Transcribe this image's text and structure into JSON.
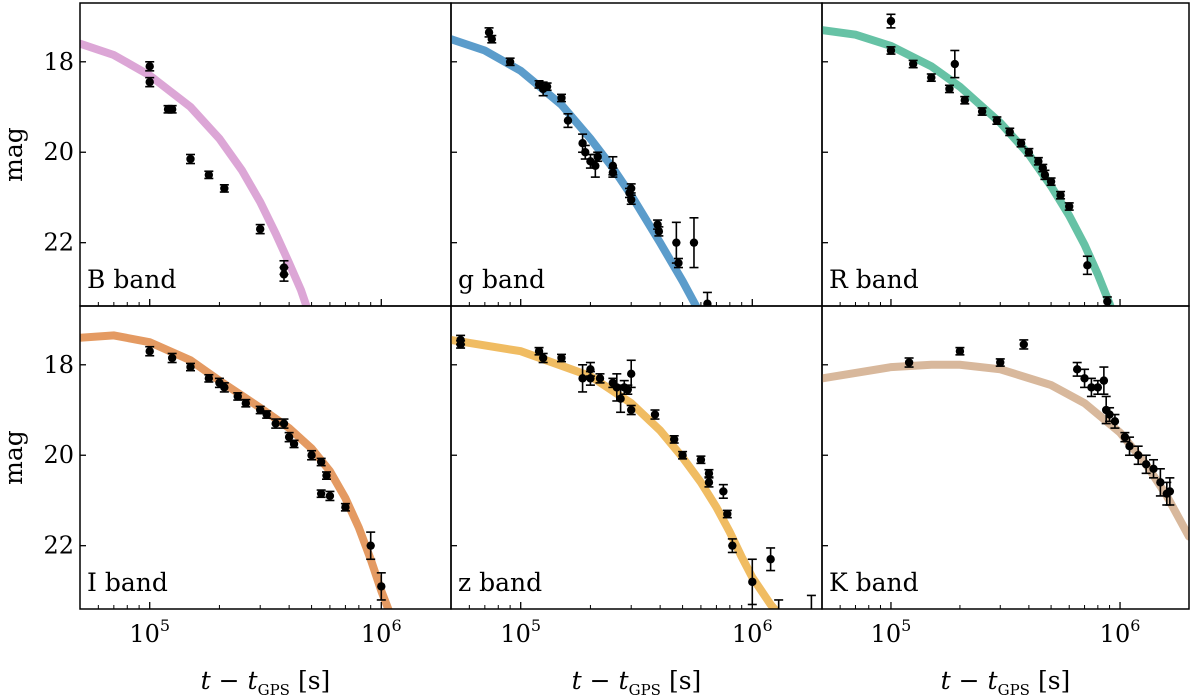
{
  "chart_data": {
    "type": "scatter",
    "x_scale": "log",
    "x_range": [
      50000,
      2000000
    ],
    "y_range_inverted": [
      23.4,
      16.7
    ],
    "grid": false,
    "legend": "none",
    "y_label": "mag",
    "x_label": {
      "main": "t − t",
      "subscript": "GPS",
      "unit": "[s]"
    },
    "x_tick_labels": [
      {
        "value": 100000,
        "base": "10",
        "exp": "5"
      },
      {
        "value": 1000000,
        "base": "10",
        "exp": "6"
      }
    ],
    "y_tick_labels": [
      {
        "value": 18,
        "text": "18"
      },
      {
        "value": 20,
        "text": "20"
      },
      {
        "value": 22,
        "text": "22"
      }
    ],
    "panels": [
      {
        "name": "B band",
        "color": "#dca6d6",
        "model": [
          [
            50000,
            17.6
          ],
          [
            70000,
            17.85
          ],
          [
            100000,
            18.3
          ],
          [
            150000,
            19.0
          ],
          [
            200000,
            19.7
          ],
          [
            250000,
            20.4
          ],
          [
            300000,
            21.1
          ],
          [
            350000,
            21.8
          ],
          [
            400000,
            22.45
          ],
          [
            450000,
            23.05
          ],
          [
            490000,
            23.6
          ]
        ],
        "points": [
          [
            100000,
            18.1,
            0.1
          ],
          [
            100000,
            18.45,
            0.1
          ],
          [
            120000,
            19.05,
            0.08
          ],
          [
            125000,
            19.05,
            0.08
          ],
          [
            150000,
            20.15,
            0.1
          ],
          [
            180000,
            20.5,
            0.08
          ],
          [
            210000,
            20.8,
            0.08
          ],
          [
            300000,
            21.7,
            0.1
          ],
          [
            380000,
            22.55,
            0.15
          ],
          [
            380000,
            22.7,
            0.15
          ]
        ]
      },
      {
        "name": "g band",
        "color": "#5b9ccb",
        "model": [
          [
            50000,
            17.5
          ],
          [
            70000,
            17.75
          ],
          [
            100000,
            18.2
          ],
          [
            150000,
            18.95
          ],
          [
            200000,
            19.7
          ],
          [
            250000,
            20.35
          ],
          [
            300000,
            20.95
          ],
          [
            400000,
            22.0
          ],
          [
            500000,
            22.85
          ],
          [
            600000,
            23.6
          ]
        ],
        "points": [
          [
            73000,
            17.35,
            0.1
          ],
          [
            75000,
            17.5,
            0.08
          ],
          [
            90000,
            18.0,
            0.08
          ],
          [
            120000,
            18.5,
            0.08
          ],
          [
            125000,
            18.6,
            0.15
          ],
          [
            130000,
            18.55,
            0.08
          ],
          [
            150000,
            18.8,
            0.08
          ],
          [
            160000,
            19.3,
            0.15
          ],
          [
            185000,
            19.8,
            0.2
          ],
          [
            190000,
            20.0,
            0.15
          ],
          [
            200000,
            20.2,
            0.15
          ],
          [
            210000,
            20.3,
            0.25
          ],
          [
            215000,
            20.1,
            0.1
          ],
          [
            250000,
            20.3,
            0.2
          ],
          [
            250000,
            20.45,
            0.1
          ],
          [
            295000,
            20.9,
            0.1
          ],
          [
            300000,
            21.05,
            0.1
          ],
          [
            300000,
            20.8,
            0.1
          ],
          [
            390000,
            21.6,
            0.1
          ],
          [
            395000,
            21.75,
            0.1
          ],
          [
            470000,
            22.0,
            0.45
          ],
          [
            480000,
            22.45,
            0.1
          ],
          [
            560000,
            22.0,
            0.55
          ],
          [
            640000,
            23.35,
            0.25
          ]
        ]
      },
      {
        "name": "R band",
        "color": "#66c2a5",
        "model": [
          [
            50000,
            17.3
          ],
          [
            70000,
            17.4
          ],
          [
            100000,
            17.65
          ],
          [
            150000,
            18.1
          ],
          [
            200000,
            18.55
          ],
          [
            300000,
            19.35
          ],
          [
            400000,
            20.05
          ],
          [
            500000,
            20.75
          ],
          [
            600000,
            21.4
          ],
          [
            700000,
            22.05
          ],
          [
            800000,
            22.7
          ],
          [
            900000,
            23.35
          ],
          [
            950000,
            23.7
          ]
        ],
        "points": [
          [
            100000,
            17.1,
            0.15
          ],
          [
            100000,
            17.75,
            0.08
          ],
          [
            125000,
            18.05,
            0.08
          ],
          [
            150000,
            18.35,
            0.08
          ],
          [
            180000,
            18.6,
            0.08
          ],
          [
            190000,
            18.05,
            0.3
          ],
          [
            210000,
            18.85,
            0.08
          ],
          [
            250000,
            19.1,
            0.08
          ],
          [
            290000,
            19.3,
            0.08
          ],
          [
            330000,
            19.55,
            0.08
          ],
          [
            370000,
            19.8,
            0.08
          ],
          [
            400000,
            20.0,
            0.08
          ],
          [
            440000,
            20.2,
            0.08
          ],
          [
            460000,
            20.35,
            0.08
          ],
          [
            470000,
            20.5,
            0.1
          ],
          [
            500000,
            20.65,
            0.08
          ],
          [
            550000,
            20.95,
            0.08
          ],
          [
            600000,
            21.2,
            0.08
          ],
          [
            720000,
            22.5,
            0.2
          ],
          [
            880000,
            23.3,
            0.1
          ]
        ]
      },
      {
        "name": "I band",
        "color": "#e49a62",
        "model": [
          [
            50000,
            17.4
          ],
          [
            70000,
            17.35
          ],
          [
            100000,
            17.5
          ],
          [
            150000,
            17.9
          ],
          [
            200000,
            18.35
          ],
          [
            300000,
            18.95
          ],
          [
            400000,
            19.4
          ],
          [
            500000,
            19.85
          ],
          [
            600000,
            20.35
          ],
          [
            700000,
            20.95
          ],
          [
            800000,
            21.6
          ],
          [
            900000,
            22.3
          ],
          [
            1000000,
            23.0
          ],
          [
            1100000,
            23.55
          ]
        ],
        "points": [
          [
            100000,
            17.7,
            0.1
          ],
          [
            125000,
            17.85,
            0.1
          ],
          [
            150000,
            18.05,
            0.08
          ],
          [
            180000,
            18.3,
            0.08
          ],
          [
            200000,
            18.4,
            0.1
          ],
          [
            210000,
            18.5,
            0.1
          ],
          [
            240000,
            18.7,
            0.08
          ],
          [
            260000,
            18.85,
            0.08
          ],
          [
            300000,
            19.0,
            0.08
          ],
          [
            320000,
            19.1,
            0.08
          ],
          [
            350000,
            19.3,
            0.1
          ],
          [
            380000,
            19.3,
            0.1
          ],
          [
            400000,
            19.6,
            0.1
          ],
          [
            420000,
            19.75,
            0.08
          ],
          [
            500000,
            20.0,
            0.1
          ],
          [
            550000,
            20.15,
            0.08
          ],
          [
            580000,
            20.45,
            0.08
          ],
          [
            550000,
            20.85,
            0.08
          ],
          [
            600000,
            20.9,
            0.1
          ],
          [
            700000,
            21.15,
            0.08
          ],
          [
            900000,
            22.0,
            0.3
          ],
          [
            1000000,
            22.9,
            0.3
          ]
        ]
      },
      {
        "name": "z band",
        "color": "#f0bc62",
        "model": [
          [
            50000,
            17.45
          ],
          [
            100000,
            17.7
          ],
          [
            200000,
            18.25
          ],
          [
            300000,
            18.85
          ],
          [
            400000,
            19.45
          ],
          [
            500000,
            20.05
          ],
          [
            600000,
            20.6
          ],
          [
            700000,
            21.15
          ],
          [
            800000,
            21.7
          ],
          [
            900000,
            22.25
          ],
          [
            1000000,
            22.7
          ],
          [
            1200000,
            23.3
          ],
          [
            1400000,
            23.7
          ]
        ],
        "points": [
          [
            55000,
            17.45,
            0.1
          ],
          [
            55000,
            17.55,
            0.08
          ],
          [
            120000,
            17.7,
            0.08
          ],
          [
            125000,
            17.85,
            0.1
          ],
          [
            150000,
            17.85,
            0.08
          ],
          [
            185000,
            18.3,
            0.3
          ],
          [
            200000,
            18.3,
            0.15
          ],
          [
            200000,
            18.1,
            0.15
          ],
          [
            220000,
            18.3,
            0.1
          ],
          [
            250000,
            18.4,
            0.1
          ],
          [
            260000,
            18.5,
            0.3
          ],
          [
            270000,
            18.75,
            0.3
          ],
          [
            280000,
            18.5,
            0.15
          ],
          [
            290000,
            18.55,
            0.1
          ],
          [
            300000,
            18.2,
            0.3
          ],
          [
            300000,
            19.0,
            0.1
          ],
          [
            380000,
            19.1,
            0.1
          ],
          [
            460000,
            19.65,
            0.08
          ],
          [
            500000,
            20.0,
            0.08
          ],
          [
            600000,
            20.1,
            0.08
          ],
          [
            650000,
            20.4,
            0.08
          ],
          [
            650000,
            20.6,
            0.1
          ],
          [
            750000,
            20.8,
            0.15
          ],
          [
            780000,
            21.3,
            0.08
          ],
          [
            820000,
            22.0,
            0.15
          ],
          [
            1000000,
            22.8,
            0.5
          ],
          [
            1200000,
            22.3,
            0.25
          ],
          [
            1300000,
            23.5,
            0.3
          ],
          [
            1800000,
            23.5,
            0.4
          ]
        ]
      },
      {
        "name": "K band",
        "color": "#d8b89c",
        "model": [
          [
            50000,
            18.3
          ],
          [
            100000,
            18.05
          ],
          [
            150000,
            18.0
          ],
          [
            200000,
            18.0
          ],
          [
            300000,
            18.1
          ],
          [
            500000,
            18.45
          ],
          [
            700000,
            18.85
          ],
          [
            1000000,
            19.5
          ],
          [
            1300000,
            20.2
          ],
          [
            1600000,
            20.9
          ],
          [
            2000000,
            21.8
          ]
        ],
        "points": [
          [
            120000,
            17.95,
            0.1
          ],
          [
            200000,
            17.7,
            0.08
          ],
          [
            300000,
            17.95,
            0.08
          ],
          [
            380000,
            17.55,
            0.1
          ],
          [
            650000,
            18.1,
            0.15
          ],
          [
            700000,
            18.3,
            0.2
          ],
          [
            750000,
            18.5,
            0.2
          ],
          [
            800000,
            18.5,
            0.15
          ],
          [
            850000,
            18.35,
            0.3
          ],
          [
            870000,
            19.0,
            0.3
          ],
          [
            900000,
            19.1,
            0.15
          ],
          [
            950000,
            19.25,
            0.15
          ],
          [
            1050000,
            19.6,
            0.1
          ],
          [
            1100000,
            19.8,
            0.2
          ],
          [
            1200000,
            20.0,
            0.2
          ],
          [
            1300000,
            20.2,
            0.2
          ],
          [
            1400000,
            20.3,
            0.2
          ],
          [
            1500000,
            20.6,
            0.3
          ],
          [
            1600000,
            20.85,
            0.25
          ],
          [
            1650000,
            20.8,
            0.3
          ]
        ]
      }
    ]
  }
}
